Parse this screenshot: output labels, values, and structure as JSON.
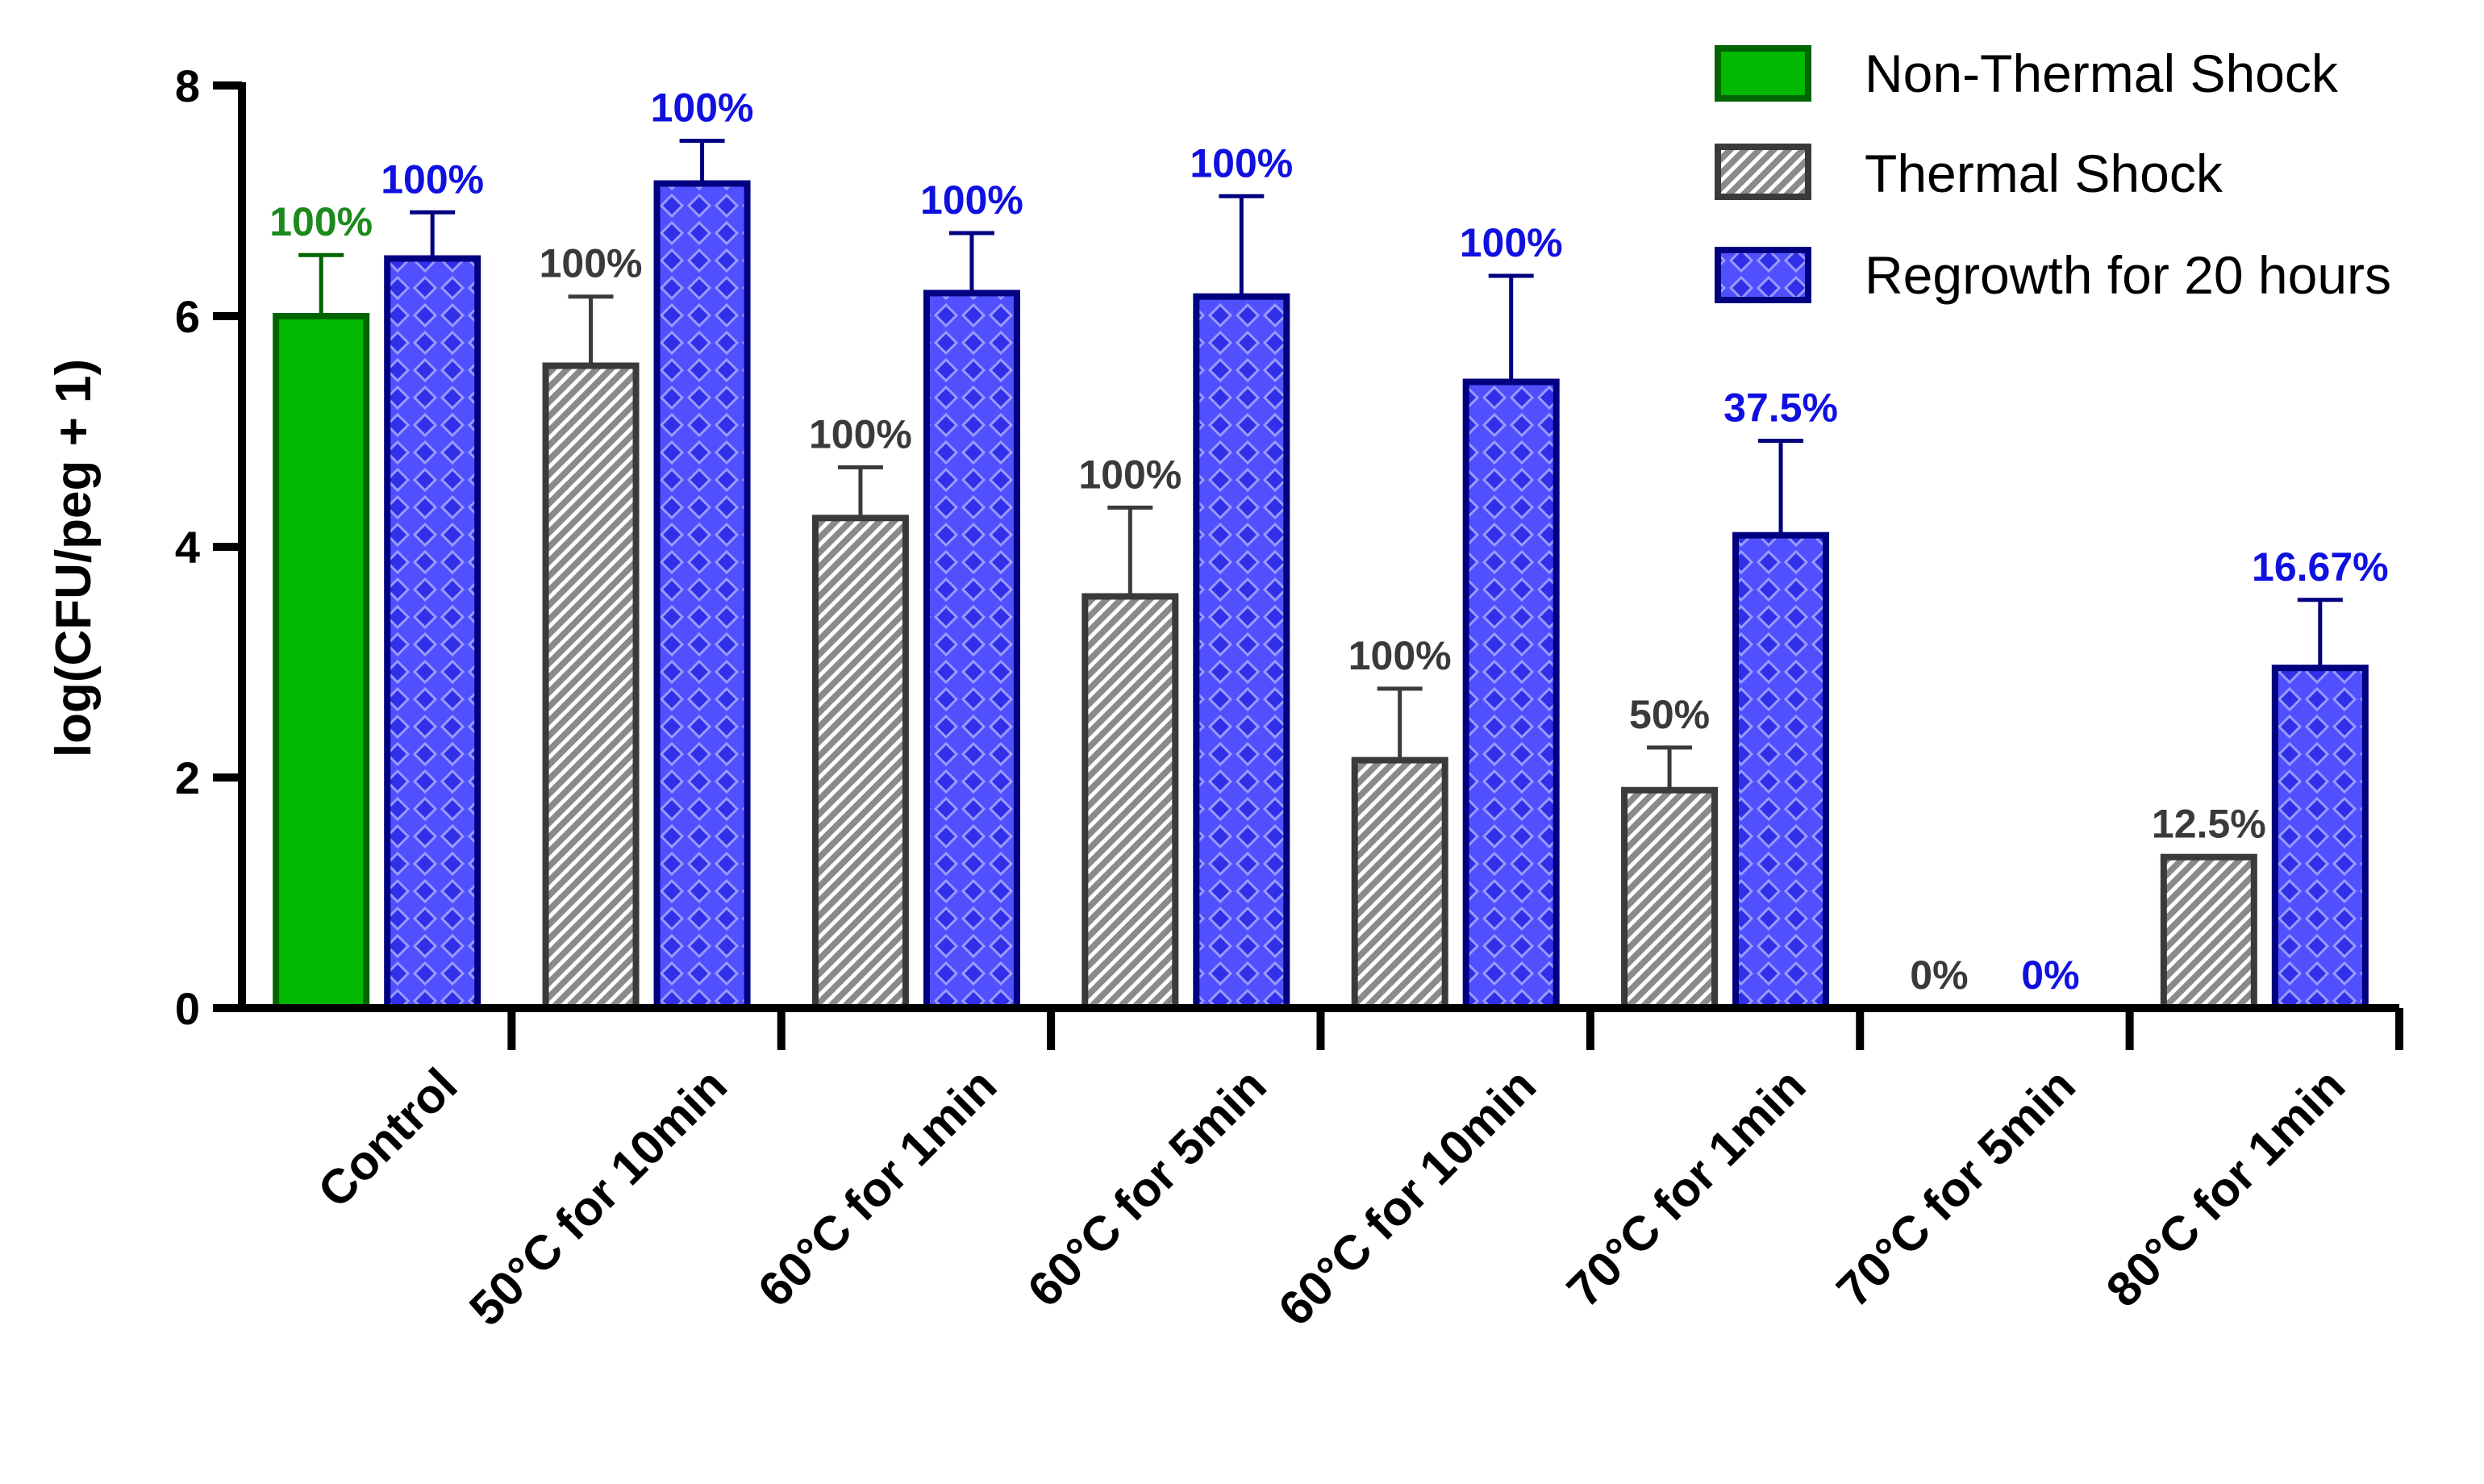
{
  "chart_data": {
    "type": "bar",
    "title": "",
    "xlabel": "",
    "ylabel": "log(CFU/peg + 1)",
    "ylim": [
      0,
      8
    ],
    "yticks": [
      0,
      2,
      4,
      6,
      8
    ],
    "categories": [
      "Control",
      "50°C for 10min",
      "60°C for 1min",
      "60°C for 5min",
      "60°C for 10min",
      "70°C for 1min",
      "70°C for 5min",
      "80°C for 1min"
    ],
    "series": [
      {
        "name": "Non-Thermal Shock",
        "color": "#00b900",
        "edge": "#006400",
        "pattern": "solid",
        "label_color": "#1c8a1c",
        "values": [
          6.0,
          null,
          null,
          null,
          null,
          null,
          null,
          null
        ],
        "errors": [
          0.53,
          null,
          null,
          null,
          null,
          null,
          null,
          null
        ],
        "labels": [
          "100%",
          null,
          null,
          null,
          null,
          null,
          null,
          null
        ]
      },
      {
        "name": "Thermal Shock",
        "color": "#8a8a8a",
        "edge": "#3a3a3a",
        "pattern": "hatch",
        "label_color": "#3a3a3a",
        "values": [
          null,
          5.57,
          4.25,
          3.57,
          2.15,
          1.89,
          0,
          1.31
        ],
        "errors": [
          null,
          0.6,
          0.44,
          0.77,
          0.62,
          0.37,
          0,
          0
        ],
        "labels": [
          null,
          "100%",
          "100%",
          "100%",
          "100%",
          "50%",
          "0%",
          "12.5%"
        ]
      },
      {
        "name": "Regrowth for 20 hours",
        "color": "#5050ff",
        "edge": "#000080",
        "pattern": "diamond",
        "label_color": "#1010e0",
        "values": [
          6.5,
          7.15,
          6.2,
          6.17,
          5.43,
          4.1,
          0,
          2.95
        ],
        "errors": [
          0.4,
          0.37,
          0.52,
          0.87,
          0.92,
          0.82,
          0,
          0.59
        ],
        "labels": [
          "100%",
          "100%",
          "100%",
          "100%",
          "100%",
          "37.5%",
          "0%",
          "16.67%"
        ]
      }
    ],
    "legend_position": "top-right"
  }
}
